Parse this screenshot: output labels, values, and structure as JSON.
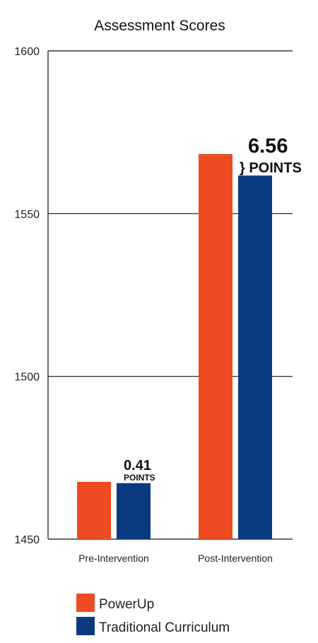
{
  "chart_data": {
    "type": "bar",
    "title": "Assessment Scores",
    "xlabel": "",
    "ylabel": "",
    "categories": [
      "Pre-Intervention",
      "Post-Intervention"
    ],
    "series": [
      {
        "name": "PowerUp",
        "color": "#EE4B23",
        "values": [
          1467.6,
          1568.3
        ]
      },
      {
        "name": "Traditional Curriculum",
        "color": "#0B3A7E",
        "values": [
          1467.2,
          1561.7
        ]
      }
    ],
    "ylim": [
      1450,
      1600
    ],
    "yticks": [
      "1450",
      "1500",
      "1550",
      "1600"
    ],
    "ytick_values": [
      1450,
      1500,
      1550,
      1600
    ],
    "grid": true,
    "legend": "bottom-left",
    "annotations": [
      {
        "category": "Pre-Intervention",
        "value": "0.41",
        "unit": "POINTS"
      },
      {
        "category": "Post-Intervention",
        "value": "6.56",
        "unit": "} POINTS"
      }
    ]
  }
}
